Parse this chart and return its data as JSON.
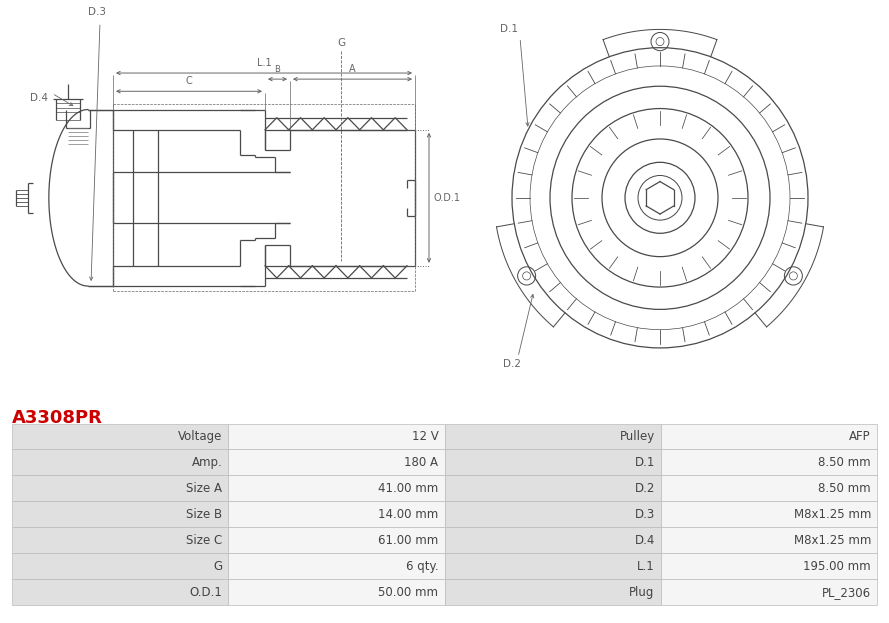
{
  "title": "A3308PR",
  "title_color": "#cc0000",
  "bg_color": "#ffffff",
  "table_data": [
    [
      "Voltage",
      "12 V",
      "Pulley",
      "AFP"
    ],
    [
      "Amp.",
      "180 A",
      "D.1",
      "8.50 mm"
    ],
    [
      "Size A",
      "41.00 mm",
      "D.2",
      "8.50 mm"
    ],
    [
      "Size B",
      "14.00 mm",
      "D.3",
      "M8x1.25 mm"
    ],
    [
      "Size C",
      "61.00 mm",
      "D.4",
      "M8x1.25 mm"
    ],
    [
      "G",
      "6 qty.",
      "L.1",
      "195.00 mm"
    ],
    [
      "O.D.1",
      "50.00 mm",
      "Plug",
      "PL_2306"
    ]
  ],
  "label_bg": "#e0e0e0",
  "value_bg": "#f5f5f5",
  "border_color": "#bbbbbb",
  "text_color": "#444444",
  "font_size_table": 8.5,
  "diagram_line_color": "#4a4a4a",
  "annotation_color": "#4a4a4a",
  "dim_color": "#666666"
}
